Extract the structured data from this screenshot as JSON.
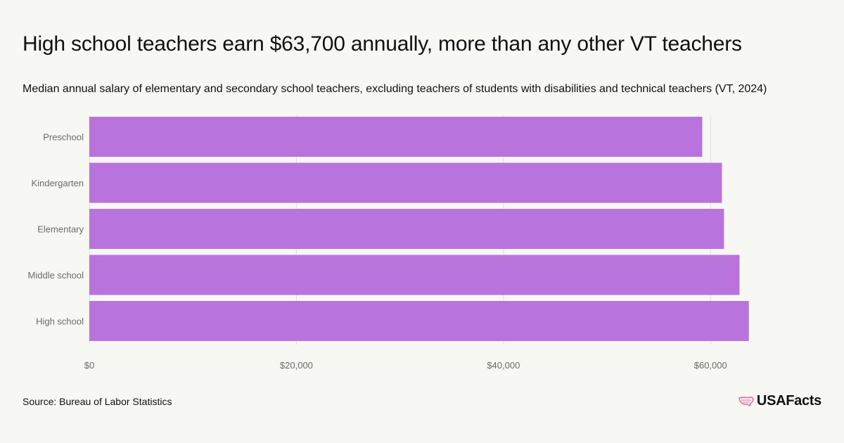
{
  "header": {
    "title": "High school teachers earn $63,700 annually, more than any other VT teachers",
    "subtitle": "Median annual salary of elementary and secondary school teachers, excluding teachers of students with disabilities and technical teachers (VT, 2024)"
  },
  "footer": {
    "source": "Source: Bureau of Labor Statistics",
    "logo_text": "USAFacts"
  },
  "colors": {
    "bar": "#b873dd",
    "grid": "#dddddd",
    "tick_text": "#6b6b6b",
    "logo_accent": "#e0629c"
  },
  "chart_data": {
    "type": "bar",
    "orientation": "horizontal",
    "categories": [
      "Preschool",
      "Kindergarten",
      "Elementary",
      "Middle school",
      "High school"
    ],
    "values": [
      59200,
      61100,
      61300,
      62800,
      63700
    ],
    "xlim": [
      0,
      68000
    ],
    "xticks": [
      0,
      20000,
      40000,
      60000
    ],
    "xtick_labels": [
      "$0",
      "$20,000",
      "$40,000",
      "$60,000"
    ],
    "xlabel": "",
    "ylabel": "",
    "grid": true
  }
}
